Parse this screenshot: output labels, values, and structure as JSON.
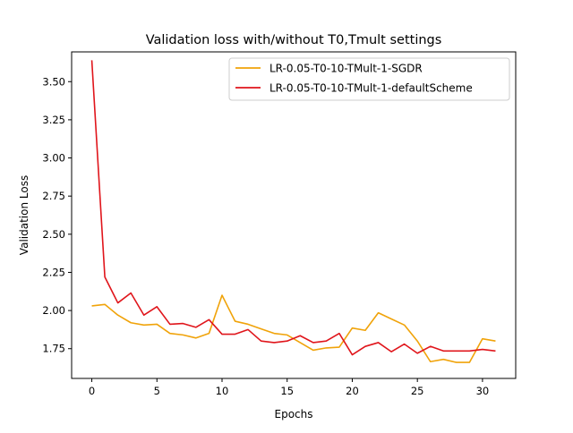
{
  "chart_data": {
    "type": "line",
    "title": "Validation loss with/without T0,Tmult settings",
    "xlabel": "Epochs",
    "ylabel": "Validation Loss",
    "xlim": [
      -1.55,
      32.55
    ],
    "ylim": [
      1.555,
      3.695
    ],
    "x_ticks": [
      0,
      5,
      10,
      15,
      20,
      25,
      30
    ],
    "y_ticks": [
      1.75,
      2.0,
      2.25,
      2.5,
      2.75,
      3.0,
      3.25,
      3.5
    ],
    "y_tick_labels": [
      "1.75",
      "2.00",
      "2.25",
      "2.50",
      "2.75",
      "3.00",
      "3.25",
      "3.50"
    ],
    "grid": false,
    "legend_position": "top-right",
    "x": [
      0,
      1,
      2,
      3,
      4,
      5,
      6,
      7,
      8,
      9,
      10,
      11,
      12,
      13,
      14,
      15,
      16,
      17,
      18,
      19,
      20,
      21,
      22,
      23,
      24,
      25,
      26,
      27,
      28,
      29,
      30,
      31
    ],
    "series": [
      {
        "name": "LR-0.05-T0-10-TMult-1-SGDR",
        "color": "#f0a30a",
        "values": [
          2.03,
          2.04,
          1.97,
          1.92,
          1.905,
          1.91,
          1.85,
          1.84,
          1.82,
          1.85,
          2.1,
          1.93,
          1.91,
          1.88,
          1.85,
          1.84,
          1.79,
          1.74,
          1.755,
          1.76,
          1.885,
          1.87,
          1.985,
          1.945,
          1.905,
          1.8,
          1.665,
          1.68,
          1.66,
          1.66,
          1.815,
          1.8
        ]
      },
      {
        "name": "LR-0.05-T0-10-TMult-1-defaultScheme",
        "color": "#e0151b",
        "values": [
          3.64,
          2.22,
          2.05,
          2.115,
          1.97,
          2.025,
          1.91,
          1.915,
          1.89,
          1.94,
          1.845,
          1.845,
          1.875,
          1.8,
          1.79,
          1.8,
          1.835,
          1.79,
          1.8,
          1.85,
          1.71,
          1.765,
          1.79,
          1.73,
          1.78,
          1.72,
          1.765,
          1.735,
          1.735,
          1.735,
          1.745,
          1.735
        ]
      }
    ]
  }
}
